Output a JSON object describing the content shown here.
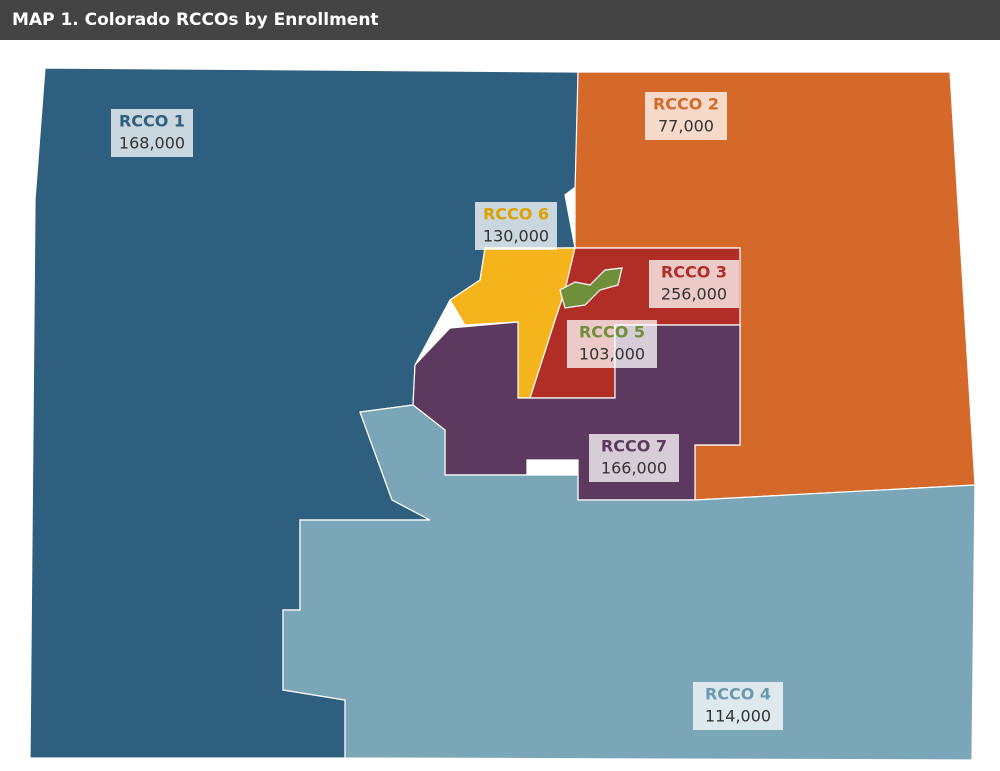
{
  "header": {
    "title": "MAP 1. Colorado RCCOs by Enrollment"
  },
  "regions": [
    {
      "name": "RCCO 1",
      "enrollment": "168,000"
    },
    {
      "name": "RCCO 2",
      "enrollment": "77,000"
    },
    {
      "name": "RCCO 6",
      "enrollment": "130,000"
    },
    {
      "name": "RCCO 3",
      "enrollment": "256,000"
    },
    {
      "name": "RCCO 5",
      "enrollment": "103,000"
    },
    {
      "name": "RCCO 7",
      "enrollment": "166,000"
    },
    {
      "name": "RCCO 4",
      "enrollment": "114,000"
    }
  ]
}
